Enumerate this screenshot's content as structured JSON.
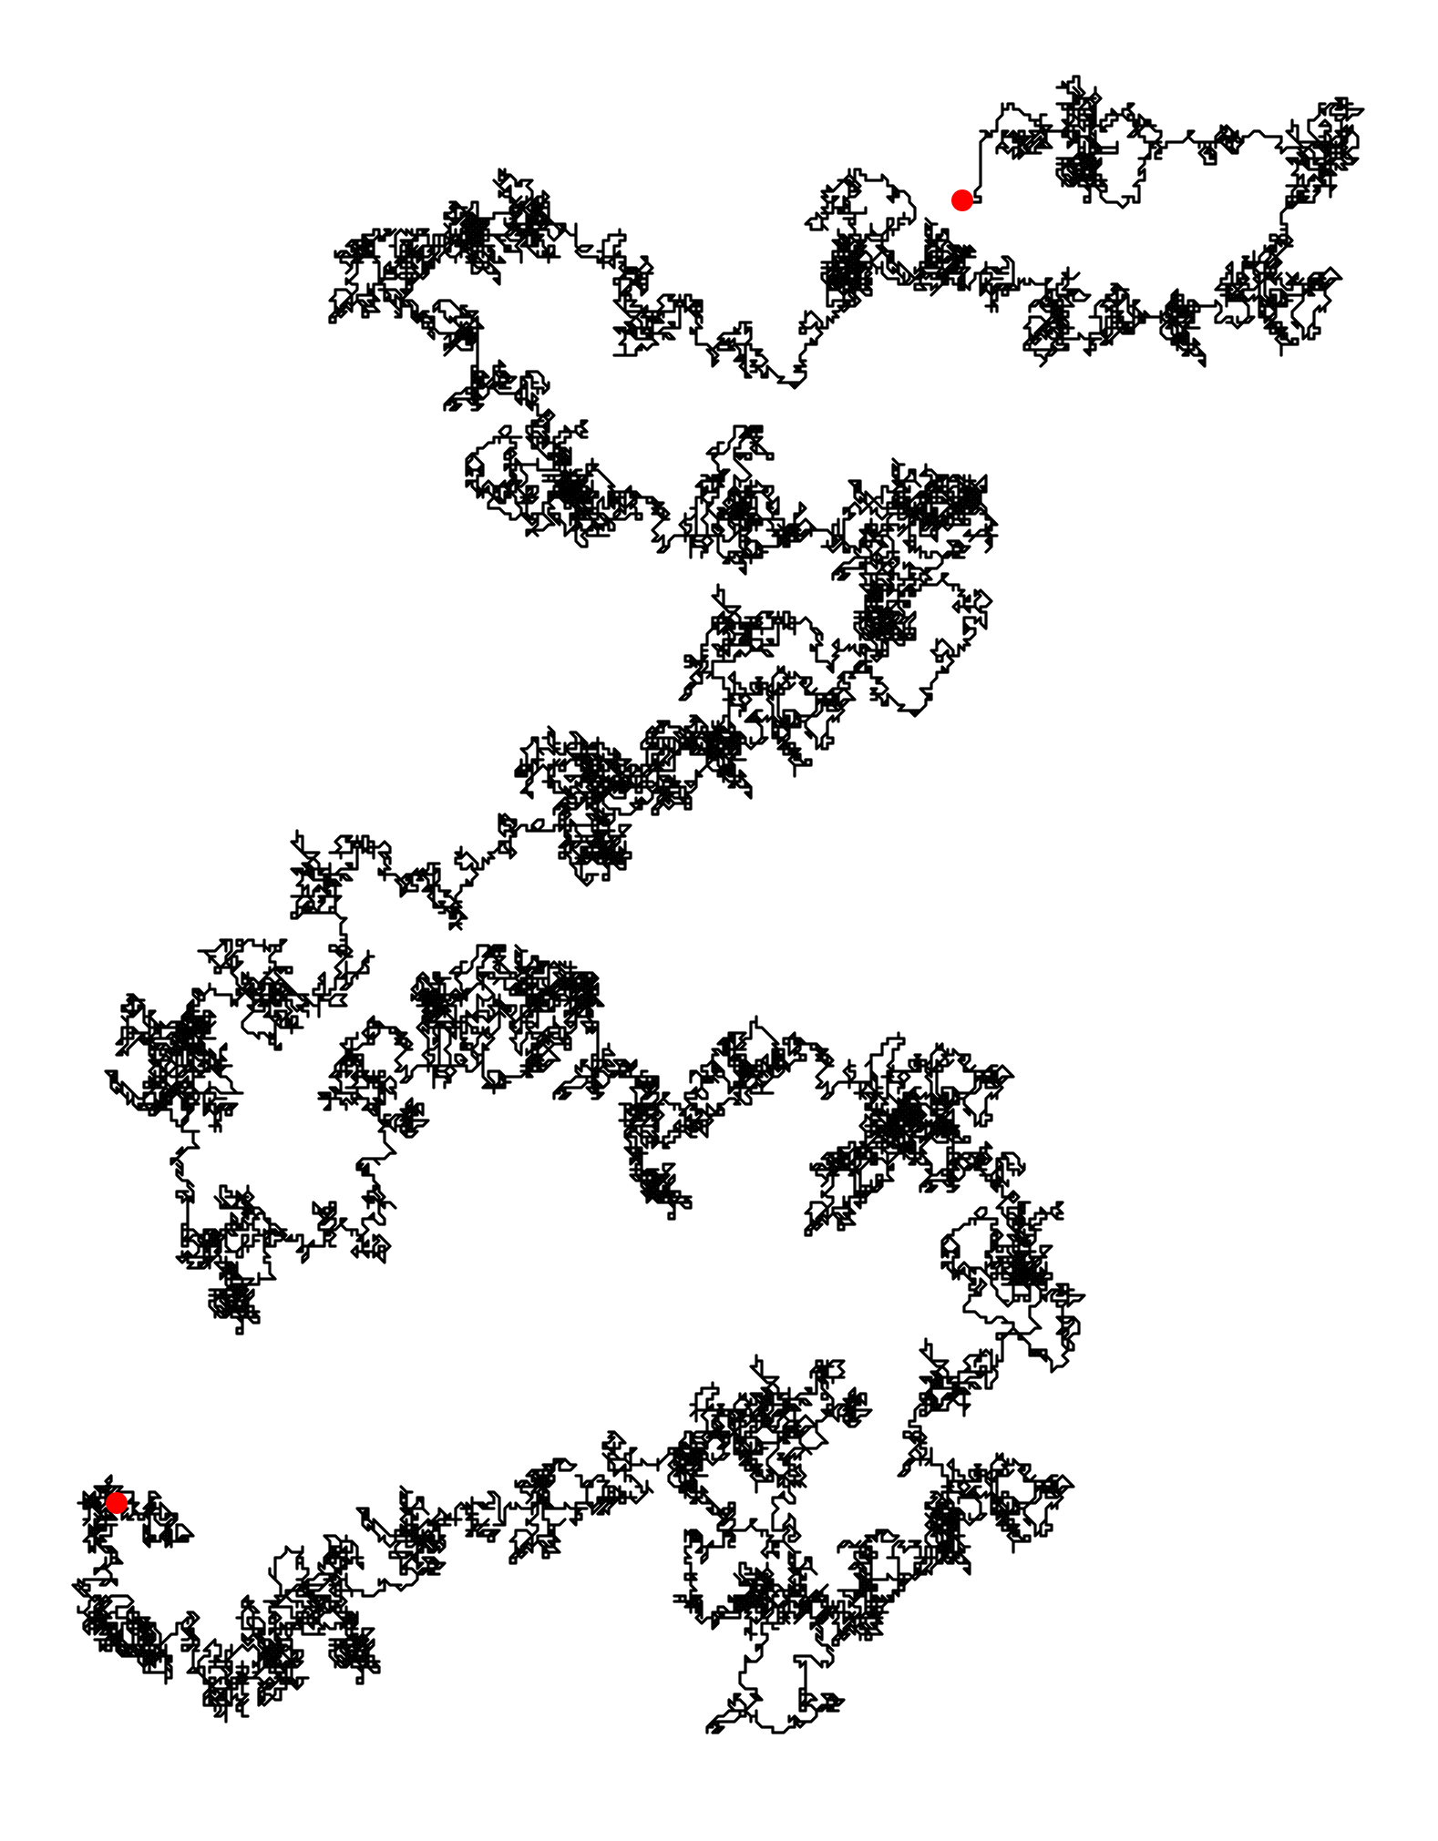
{
  "image": {
    "background_color": "#ffffff",
    "path_color": "#000000",
    "marker_color": "#ff0000",
    "description_kind": "random-walk-path-with-two-endpoint-markers"
  }
}
